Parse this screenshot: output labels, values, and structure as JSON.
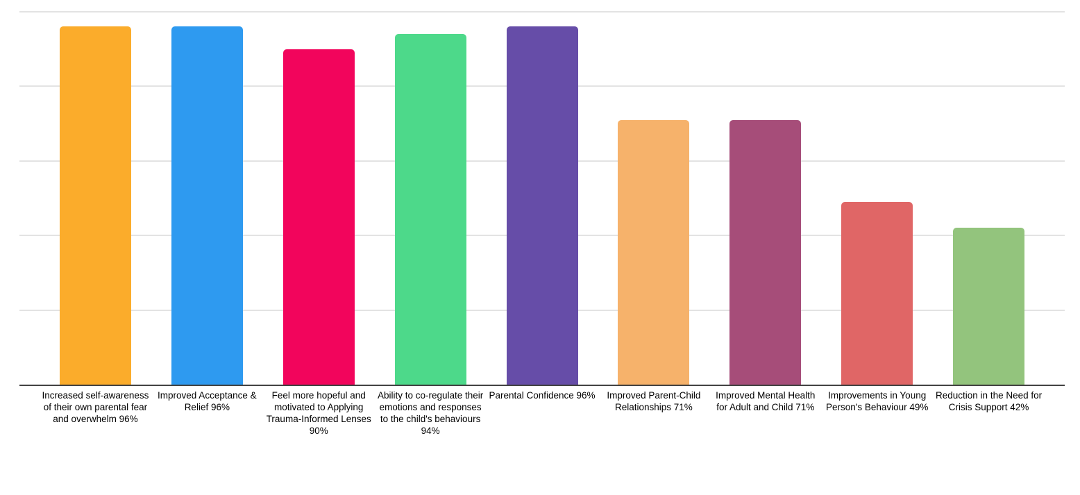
{
  "chart_data": {
    "type": "bar",
    "title": "",
    "xlabel": "",
    "ylabel": "",
    "ylim": [
      0,
      100
    ],
    "y_axis_tick_labels_visible": false,
    "grid": "horizontal",
    "y_gridlines_pct": [
      20,
      40,
      60,
      80,
      100
    ],
    "legend": "none",
    "categories": [
      "Increased self-awareness of their own parental fear and overwhelm 96%",
      "Improved Acceptance & Relief 96%",
      "Feel more hopeful and motivated to Applying Trauma-Informed Lenses 90%",
      "Ability to co-regulate their emotions and responses to the child's behaviours 94%",
      "Parental Confidence 96%",
      "Improved Parent-Child Relationships 71%",
      "Improved Mental Health for Adult and Child 71%",
      "Improvements in Young Person's Behaviour 49%",
      "Reduction in the Need for Crisis Support 42%"
    ],
    "values": [
      96,
      96,
      90,
      94,
      96,
      71,
      71,
      49,
      42
    ],
    "bar_colors": [
      "#FBAC2B",
      "#2E9AF0",
      "#F2055C",
      "#4DD98A",
      "#664DA8",
      "#F6B26B",
      "#A64D79",
      "#E06666",
      "#93C47D"
    ]
  },
  "colors": {
    "background": "#FFFFFF",
    "gridline": "#E3E3E3",
    "axis_line": "#424242",
    "label_text": "#000000"
  }
}
